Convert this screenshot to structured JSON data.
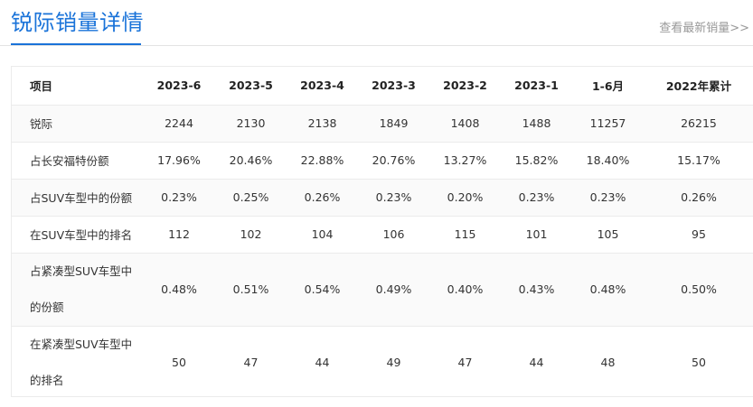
{
  "header": {
    "title": "锐际销量详情",
    "more_link": "查看最新销量>>"
  },
  "table": {
    "columns": [
      "项目",
      "2023-6",
      "2023-5",
      "2023-4",
      "2023-3",
      "2023-2",
      "2023-1",
      "1-6月",
      "2022年累计"
    ],
    "rows": [
      {
        "label": "锐际",
        "values": [
          "2244",
          "2130",
          "2138",
          "1849",
          "1408",
          "1488",
          "11257",
          "26215"
        ]
      },
      {
        "label": "占长安福特份额",
        "values": [
          "17.96%",
          "20.46%",
          "22.88%",
          "20.76%",
          "13.27%",
          "15.82%",
          "18.40%",
          "15.17%"
        ]
      },
      {
        "label": "占SUV车型中的份额",
        "values": [
          "0.23%",
          "0.25%",
          "0.26%",
          "0.23%",
          "0.20%",
          "0.23%",
          "0.23%",
          "0.26%"
        ]
      },
      {
        "label": "在SUV车型中的排名",
        "values": [
          "112",
          "102",
          "104",
          "106",
          "115",
          "101",
          "105",
          "95"
        ]
      },
      {
        "label": "占紧凑型SUV车型中的份额",
        "values": [
          "0.48%",
          "0.51%",
          "0.54%",
          "0.49%",
          "0.40%",
          "0.43%",
          "0.48%",
          "0.50%"
        ]
      },
      {
        "label": "在紧凑型SUV车型中的排名",
        "values": [
          "50",
          "47",
          "44",
          "49",
          "47",
          "44",
          "48",
          "50"
        ]
      }
    ]
  }
}
